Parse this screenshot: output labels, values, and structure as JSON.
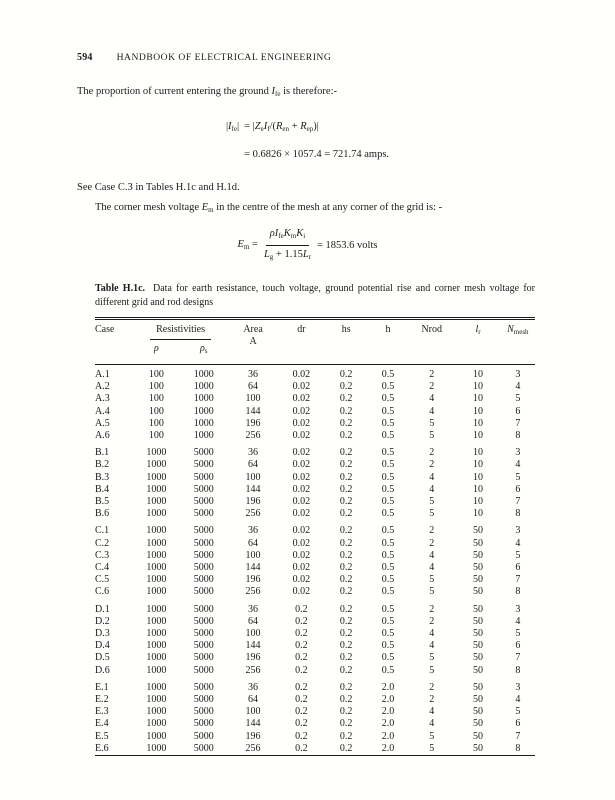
{
  "page": {
    "number": "594",
    "running_title": "HANDBOOK OF ELECTRICAL ENGINEERING"
  },
  "paragraphs": {
    "p1": [
      {
        "t": "The proportion of current entering the ground "
      },
      {
        "t": "I",
        "it": 1
      },
      {
        "t": "fe",
        "sub": 1
      },
      {
        "t": " is therefore:-"
      }
    ],
    "see_case": "See Case C.3 in Tables H.1c and H.1d.",
    "p2": [
      {
        "t": "The corner mesh voltage "
      },
      {
        "t": "E",
        "it": 1
      },
      {
        "t": "m",
        "sub": 1
      },
      {
        "t": " in the centre of the mesh at any corner of the grid is: -"
      }
    ]
  },
  "eq1": {
    "lhs": [
      {
        "t": "|"
      },
      {
        "t": "I",
        "it": 1
      },
      {
        "t": "fe",
        "sub": 1
      },
      {
        "t": "|"
      }
    ],
    "rhs1": [
      {
        "t": "= |"
      },
      {
        "t": "Z",
        "it": 1
      },
      {
        "t": "e",
        "sub": 1
      },
      {
        "t": "I",
        "it": 1
      },
      {
        "t": "f",
        "sub": 1
      },
      {
        "t": "/("
      },
      {
        "t": "R",
        "it": 1
      },
      {
        "t": "en",
        "sub": 1
      },
      {
        "t": " + "
      },
      {
        "t": "R",
        "it": 1
      },
      {
        "t": "ep",
        "sub": 1
      },
      {
        "t": ")|"
      }
    ],
    "rhs2": [
      {
        "t": "= 0.6826 × 1057.4 = 721.74 amps."
      }
    ]
  },
  "eq2": {
    "pre": [
      {
        "t": "E",
        "it": 1
      },
      {
        "t": "m",
        "sub": 1
      },
      {
        "t": " ="
      }
    ],
    "num": [
      {
        "t": "ρ",
        "it": 1
      },
      {
        "t": "I",
        "it": 1
      },
      {
        "t": "fe",
        "sub": 1
      },
      {
        "t": "K",
        "it": 1
      },
      {
        "t": "m",
        "sub": 1
      },
      {
        "t": "K",
        "it": 1
      },
      {
        "t": "i",
        "sub": 1
      }
    ],
    "den": [
      {
        "t": "L",
        "it": 1
      },
      {
        "t": "g",
        "sub": 1
      },
      {
        "t": " + 1.15"
      },
      {
        "t": "L",
        "it": 1
      },
      {
        "t": "r",
        "sub": 1
      }
    ],
    "post": [
      {
        "t": "= 1853.6 volts"
      }
    ]
  },
  "table": {
    "caption_label": "Table H.1c.",
    "caption_text": "Data for earth resistance, touch voltage, ground potential rise and corner mesh voltage for different grid and rod designs",
    "headers": {
      "case": "Case",
      "resistivities": "Resistivities",
      "rho": [
        {
          "t": "ρ",
          "it": 1
        }
      ],
      "rho_s": [
        {
          "t": "ρ",
          "it": 1
        },
        {
          "t": "s",
          "sub": 1
        }
      ],
      "area_l1": "Area",
      "area_l2": "A",
      "dr": "dr",
      "hs": "hs",
      "h": "h",
      "nrod": "Nrod",
      "lr": [
        {
          "t": "l",
          "it": 1
        },
        {
          "t": "r",
          "sub": 1
        }
      ],
      "nmesh": [
        {
          "t": "N",
          "it": 1
        },
        {
          "t": "mesh",
          "sub": 1
        }
      ]
    },
    "groups": [
      {
        "rows": [
          [
            "A.1",
            "100",
            "1000",
            "36",
            "0.02",
            "0.2",
            "0.5",
            "2",
            "10",
            "3"
          ],
          [
            "A.2",
            "100",
            "1000",
            "64",
            "0.02",
            "0.2",
            "0.5",
            "2",
            "10",
            "4"
          ],
          [
            "A.3",
            "100",
            "1000",
            "100",
            "0.02",
            "0.2",
            "0.5",
            "4",
            "10",
            "5"
          ],
          [
            "A.4",
            "100",
            "1000",
            "144",
            "0.02",
            "0.2",
            "0.5",
            "4",
            "10",
            "6"
          ],
          [
            "A.5",
            "100",
            "1000",
            "196",
            "0.02",
            "0.2",
            "0.5",
            "5",
            "10",
            "7"
          ],
          [
            "A.6",
            "100",
            "1000",
            "256",
            "0.02",
            "0.2",
            "0.5",
            "5",
            "10",
            "8"
          ]
        ]
      },
      {
        "rows": [
          [
            "B.1",
            "1000",
            "5000",
            "36",
            "0.02",
            "0.2",
            "0.5",
            "2",
            "10",
            "3"
          ],
          [
            "B.2",
            "1000",
            "5000",
            "64",
            "0.02",
            "0.2",
            "0.5",
            "2",
            "10",
            "4"
          ],
          [
            "B.3",
            "1000",
            "5000",
            "100",
            "0.02",
            "0.2",
            "0.5",
            "4",
            "10",
            "5"
          ],
          [
            "B.4",
            "1000",
            "5000",
            "144",
            "0.02",
            "0.2",
            "0.5",
            "4",
            "10",
            "6"
          ],
          [
            "B.5",
            "1000",
            "5000",
            "196",
            "0.02",
            "0.2",
            "0.5",
            "5",
            "10",
            "7"
          ],
          [
            "B.6",
            "1000",
            "5000",
            "256",
            "0.02",
            "0.2",
            "0.5",
            "5",
            "10",
            "8"
          ]
        ]
      },
      {
        "rows": [
          [
            "C.1",
            "1000",
            "5000",
            "36",
            "0.02",
            "0.2",
            "0.5",
            "2",
            "50",
            "3"
          ],
          [
            "C.2",
            "1000",
            "5000",
            "64",
            "0.02",
            "0.2",
            "0.5",
            "2",
            "50",
            "4"
          ],
          [
            "C.3",
            "1000",
            "5000",
            "100",
            "0.02",
            "0.2",
            "0.5",
            "4",
            "50",
            "5"
          ],
          [
            "C.4",
            "1000",
            "5000",
            "144",
            "0.02",
            "0.2",
            "0.5",
            "4",
            "50",
            "6"
          ],
          [
            "C.5",
            "1000",
            "5000",
            "196",
            "0.02",
            "0.2",
            "0.5",
            "5",
            "50",
            "7"
          ],
          [
            "C.6",
            "1000",
            "5000",
            "256",
            "0.02",
            "0.2",
            "0.5",
            "5",
            "50",
            "8"
          ]
        ]
      },
      {
        "rows": [
          [
            "D.1",
            "1000",
            "5000",
            "36",
            "0.2",
            "0.2",
            "0.5",
            "2",
            "50",
            "3"
          ],
          [
            "D.2",
            "1000",
            "5000",
            "64",
            "0.2",
            "0.2",
            "0.5",
            "2",
            "50",
            "4"
          ],
          [
            "D.3",
            "1000",
            "5000",
            "100",
            "0.2",
            "0.2",
            "0.5",
            "4",
            "50",
            "5"
          ],
          [
            "D.4",
            "1000",
            "5000",
            "144",
            "0.2",
            "0.2",
            "0.5",
            "4",
            "50",
            "6"
          ],
          [
            "D.5",
            "1000",
            "5000",
            "196",
            "0.2",
            "0.2",
            "0.5",
            "5",
            "50",
            "7"
          ],
          [
            "D.6",
            "1000",
            "5000",
            "256",
            "0.2",
            "0.2",
            "0.5",
            "5",
            "50",
            "8"
          ]
        ]
      },
      {
        "rows": [
          [
            "E.1",
            "1000",
            "5000",
            "36",
            "0.2",
            "0.2",
            "2.0",
            "2",
            "50",
            "3"
          ],
          [
            "E.2",
            "1000",
            "5000",
            "64",
            "0.2",
            "0.2",
            "2.0",
            "2",
            "50",
            "4"
          ],
          [
            "E.3",
            "1000",
            "5000",
            "100",
            "0.2",
            "0.2",
            "2.0",
            "4",
            "50",
            "5"
          ],
          [
            "E.4",
            "1000",
            "5000",
            "144",
            "0.2",
            "0.2",
            "2.0",
            "4",
            "50",
            "6"
          ],
          [
            "E.5",
            "1000",
            "5000",
            "196",
            "0.2",
            "0.2",
            "2.0",
            "5",
            "50",
            "7"
          ],
          [
            "E.6",
            "1000",
            "5000",
            "256",
            "0.2",
            "0.2",
            "2.0",
            "5",
            "50",
            "8"
          ]
        ]
      }
    ]
  }
}
